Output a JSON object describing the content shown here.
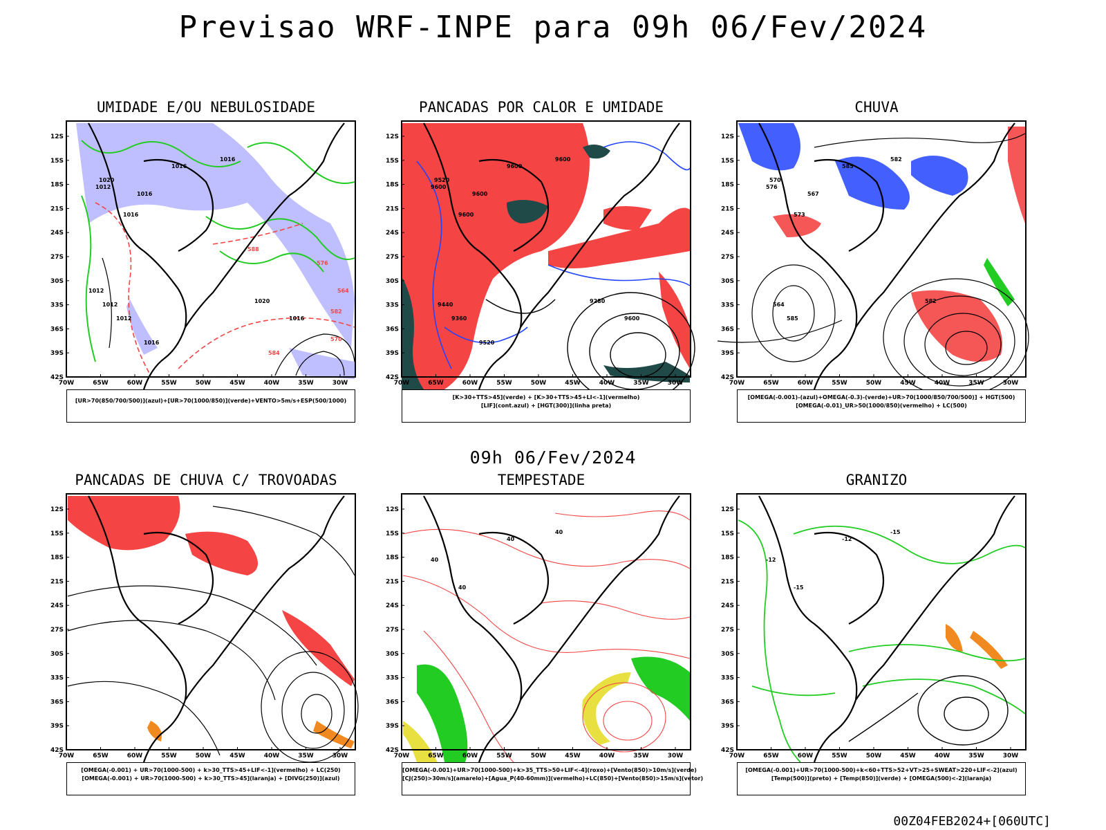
{
  "title": "Previsao WRF-INPE  para 09h 06/Fev/2024",
  "mid_time": "09h 06/Fev/2024",
  "footer": "00Z04FEB2024+[060UTC]",
  "axes": {
    "lat_labels": [
      "12S",
      "15S",
      "18S",
      "21S",
      "24S",
      "27S",
      "30S",
      "33S",
      "36S",
      "39S",
      "42S"
    ],
    "lon_labels": [
      "70W",
      "65W",
      "60W",
      "55W",
      "50W",
      "45W",
      "40W",
      "35W",
      "30W"
    ]
  },
  "colors": {
    "red": "#f44444",
    "green": "#22cc22",
    "blue": "#2244ff",
    "lavender": "#aaaaff",
    "yellow": "#e8e040",
    "darkteal": "#1f4a48",
    "orange": "#f08a20"
  },
  "panels": [
    {
      "id": "umidade",
      "title": "UMIDADE E/OU NEBULOSIDADE",
      "legend": [
        "[UR>70(850/700/500)](azul)+[UR>70(1000/850)](verde)+VENTO>5m/s+ESP(500/1000)"
      ],
      "labels": [
        "1016",
        "1016",
        "1012",
        "1016",
        "1020",
        "1016",
        "1012",
        "1012",
        "1020",
        "1016",
        "1016",
        "1012",
        "576",
        "570",
        "564",
        "588",
        "582",
        "584"
      ]
    },
    {
      "id": "pancadas-calor",
      "title": "PANCADAS POR CALOR E UMIDADE",
      "legend": [
        "[K>30+TTS>45](verde) + [K>30+TTS>45+LI<-1](vermelho)",
        "[LIF](cont.azul) + [HGT(300)](linha preta)"
      ],
      "labels": [
        "9600",
        "9600",
        "9600",
        "9600",
        "9520",
        "9600",
        "9440",
        "9360",
        "9280",
        "9600",
        "9520"
      ]
    },
    {
      "id": "chuva",
      "title": "CHUVA",
      "legend": [
        "[OMEGA(-0.001)-(azul)+OMEGA(-0.3)-(verde)+UR>70(1000/850/700/500)] + HGT(500)",
        "[OMEGA(-0.01)_UR>50(1000/850)(vermelho) + LC(500)"
      ],
      "labels": [
        "585",
        "582",
        "576",
        "573",
        "570",
        "567",
        "564",
        "585",
        "582"
      ]
    },
    {
      "id": "pancadas-trovoadas",
      "title": "PANCADAS DE CHUVA C/ TROVOADAS",
      "legend": [
        "[OMEGA(-0.001) + UR>70(1000-500) + k>30_TTS>45+LIF<-1](vermelho) + LC(250)",
        "[OMEGA(-0.001) + UR>70(1000-500) + k>30_TTS>45](laranja) + [DIVG(250)](azul)"
      ],
      "labels": []
    },
    {
      "id": "tempestade",
      "title": "TEMPESTADE",
      "legend": [
        "[OMEGA(-0.001)+UR>70(1000-500)+k>35_TTS>50+LIF<-4](roxo)+[Vento(850)>10m/s](verde)",
        "[CJ(250)>30m/s](amarelo)+[Agua_P(40-60mm)](vermelho)+LC(850)+[Vento(850)>15m/s](vetor)"
      ],
      "labels": [
        "40",
        "40",
        "40",
        "40"
      ]
    },
    {
      "id": "granizo",
      "title": "GRANIZO",
      "legend": [
        "[OMEGA(-0.001)+UR>70(1000-500)+k<60+TTS>52+VT>25+SWEAT>220+LIF<-2](azul)",
        "[Temp(500)](preto) + [Temp(850)](verde) + [OMEGA(500)<-2](laranja)"
      ],
      "labels": [
        "-12",
        "-15",
        "-12",
        "-15"
      ]
    }
  ]
}
